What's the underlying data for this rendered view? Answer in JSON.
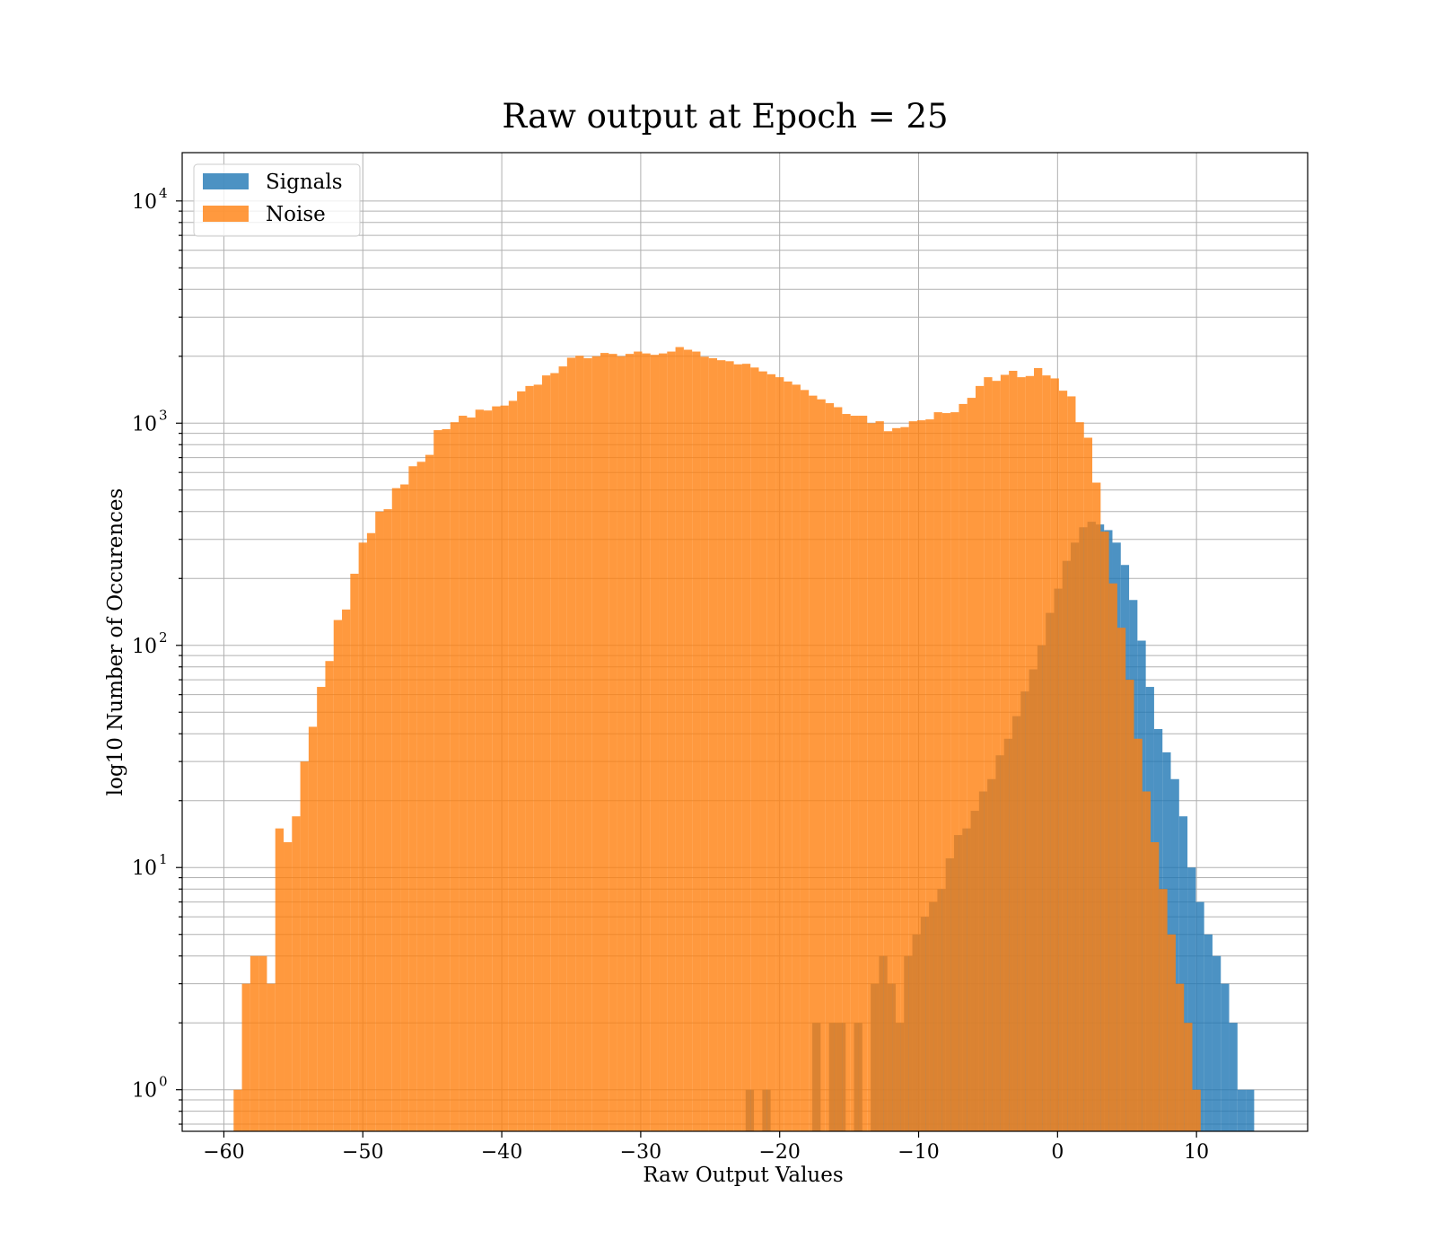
{
  "chart_data": {
    "type": "bar",
    "title": "Raw output at Epoch = 25",
    "xlabel": "Raw Output Values",
    "ylabel": "log10 Number of Occurences",
    "yscale": "log",
    "xlim": [
      -63,
      18
    ],
    "ylim": [
      0.65,
      16500
    ],
    "x_ticks": [
      -60,
      -50,
      -40,
      -30,
      -20,
      -10,
      0,
      10
    ],
    "x_tick_labels": [
      "−60",
      "−50",
      "−40",
      "−30",
      "−20",
      "−10",
      "0",
      "10"
    ],
    "y_ticks": [
      1,
      10,
      100,
      1000,
      10000
    ],
    "y_tick_labels": [
      {
        "base": "10",
        "exp": "0"
      },
      {
        "base": "10",
        "exp": "1"
      },
      {
        "base": "10",
        "exp": "2"
      },
      {
        "base": "10",
        "exp": "3"
      },
      {
        "base": "10",
        "exp": "4"
      }
    ],
    "grid": true,
    "legend_position": "top-left",
    "series": [
      {
        "name": "Signals",
        "color": "#1f77b4",
        "opacity": 0.8,
        "bin_start": -22.45,
        "bin_width": 0.6,
        "counts": [
          1,
          0,
          1,
          0,
          0,
          0,
          0,
          0,
          2,
          0,
          2,
          2,
          0,
          2,
          0,
          3,
          4,
          3,
          2,
          4,
          5,
          6,
          7,
          8,
          11,
          14,
          15,
          18,
          22,
          25,
          32,
          38,
          48,
          62,
          78,
          100,
          140,
          180,
          240,
          290,
          340,
          360,
          350,
          330,
          290,
          230,
          160,
          105,
          65,
          42,
          33,
          25,
          17,
          10,
          7,
          5,
          4,
          3,
          2,
          1,
          1,
          0
        ]
      },
      {
        "name": "Noise",
        "color": "#ff7f0e",
        "opacity": 0.8,
        "bin_start": -59.3,
        "bin_width": 0.6,
        "counts": [
          1,
          3,
          4,
          4,
          3,
          15,
          13,
          17,
          30,
          43,
          65,
          85,
          130,
          145,
          210,
          290,
          320,
          400,
          410,
          510,
          530,
          640,
          670,
          720,
          930,
          940,
          1010,
          1080,
          1060,
          1150,
          1140,
          1190,
          1200,
          1260,
          1390,
          1470,
          1490,
          1640,
          1680,
          1800,
          1970,
          2010,
          1960,
          2000,
          2070,
          2050,
          2000,
          2050,
          2100,
          2060,
          2030,
          2060,
          2100,
          2200,
          2140,
          2100,
          1990,
          1960,
          1920,
          1900,
          1840,
          1850,
          1780,
          1710,
          1660,
          1610,
          1540,
          1490,
          1410,
          1330,
          1280,
          1230,
          1180,
          1100,
          1080,
          1080,
          1000,
          1020,
          920,
          950,
          960,
          1020,
          1030,
          1040,
          1120,
          1110,
          1120,
          1220,
          1300,
          1470,
          1610,
          1550,
          1650,
          1720,
          1610,
          1630,
          1770,
          1640,
          1590,
          1400,
          1320,
          1010,
          860,
          540,
          325,
          190,
          120,
          70,
          38,
          22,
          13,
          8,
          5,
          3,
          2,
          1
        ]
      }
    ]
  }
}
